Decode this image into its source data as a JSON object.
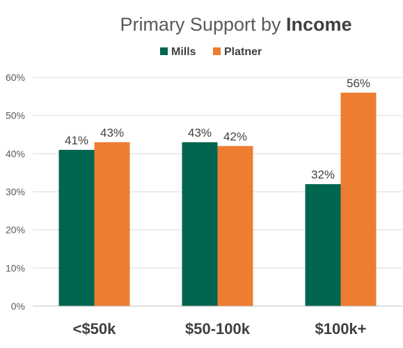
{
  "chart_data": {
    "type": "bar",
    "title": "Primary Support by ",
    "title_bold": "Income",
    "categories": [
      "<$50k",
      "$50-100k",
      "$100k+"
    ],
    "series": [
      {
        "name": "Mills",
        "color": "#00664F",
        "values": [
          41,
          43,
          32
        ],
        "labels": [
          "41%",
          "43%",
          "32%"
        ]
      },
      {
        "name": "Platner",
        "color": "#ED7D31",
        "values": [
          43,
          42,
          56
        ],
        "labels": [
          "43%",
          "42%",
          "56%"
        ]
      }
    ],
    "ylim": [
      0,
      60
    ],
    "yticks": [
      "0%",
      "10%",
      "20%",
      "30%",
      "40%",
      "50%",
      "60%"
    ],
    "grid": true,
    "legend_position": "top"
  }
}
